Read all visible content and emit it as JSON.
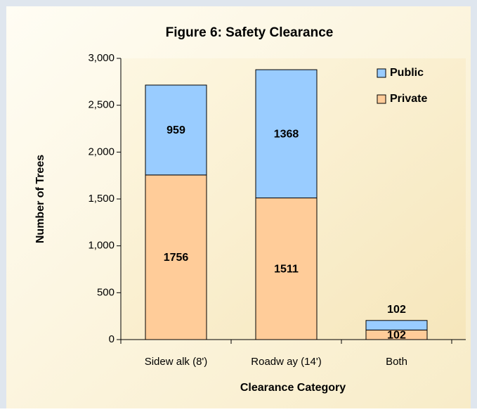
{
  "chart_data": {
    "type": "stacked_bar",
    "title": "Figure 6: Safety Clearance",
    "x_label": "Clearance Category",
    "y_label": "Number of Trees",
    "categories": [
      "Sidew alk (8')",
      "Roadw ay (14')",
      "Both"
    ],
    "series": [
      {
        "name": "Private",
        "color": "#ffcc99",
        "values": [
          1756,
          1511,
          102
        ]
      },
      {
        "name": "Public",
        "color": "#99ccff",
        "values": [
          959,
          1368,
          102
        ]
      }
    ],
    "ylim": [
      0,
      3000
    ],
    "yticks": [
      0,
      500,
      {
        "value": 1000,
        "label": "1,000"
      },
      {
        "value": 1500,
        "label": "1,500"
      },
      {
        "value": 2000,
        "label": "2,000"
      },
      {
        "value": 2500,
        "label": "2,500"
      },
      {
        "value": 3000,
        "label": "3,000"
      }
    ],
    "legend": "top-right",
    "grid": false
  }
}
